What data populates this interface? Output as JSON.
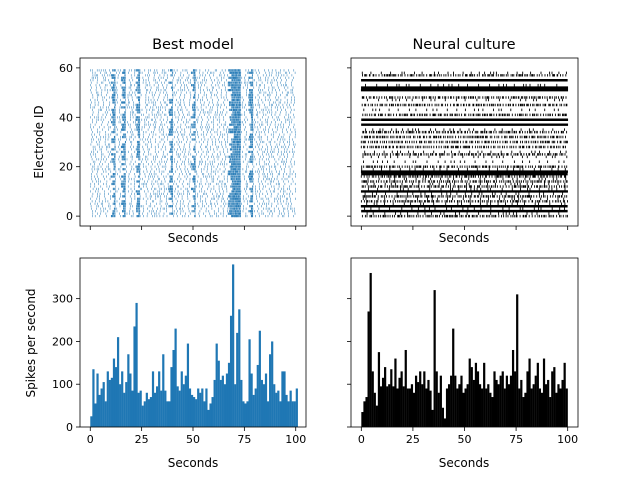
{
  "chart_data": [
    {
      "type": "raster",
      "title": "Best model",
      "xlabel": "Seconds",
      "ylabel": "Electrode ID",
      "xlim": [
        -5,
        105
      ],
      "ylim": [
        -4,
        64
      ],
      "yticks": [
        0,
        20,
        40,
        60
      ],
      "ytick_labels": [
        "0",
        "20",
        "40",
        "60"
      ],
      "xticks": [
        0,
        25,
        50,
        75,
        100
      ],
      "color": "#1f77b4",
      "electrodes": 60,
      "duration": 100,
      "bursts": [
        [
          10,
          12
        ],
        [
          15,
          17
        ],
        [
          22,
          24
        ],
        [
          38,
          40
        ],
        [
          49,
          51
        ],
        [
          67,
          73
        ],
        [
          77,
          79
        ]
      ],
      "sparse_electrodes": []
    },
    {
      "type": "raster",
      "title": "Neural culture",
      "xlabel": "Seconds",
      "ylabel": "",
      "xlim": [
        -5,
        105
      ],
      "ylim": [
        -4,
        64
      ],
      "yticks": [
        0,
        20,
        40,
        60
      ],
      "xticks": [
        0,
        25,
        50,
        75,
        100
      ],
      "color": "#000000",
      "electrodes": 60,
      "duration": 100,
      "dense_electrodes": [
        2,
        4,
        10,
        17,
        18,
        37,
        39,
        51,
        52,
        55
      ],
      "medium_electrodes": [
        0,
        6,
        8,
        12,
        14,
        16,
        20,
        25,
        28,
        30,
        32,
        34,
        41,
        45,
        48,
        57
      ],
      "sparse_electrodes": [
        1,
        3,
        5,
        7,
        9,
        11,
        13,
        15,
        19,
        22,
        24,
        26,
        35,
        43,
        47,
        53,
        58
      ]
    },
    {
      "type": "bar",
      "title": "",
      "xlabel": "Seconds",
      "ylabel": "Spikes per second",
      "xlim": [
        -5,
        105
      ],
      "ylim": [
        0,
        395
      ],
      "yticks": [
        0,
        100,
        200,
        300
      ],
      "ytick_labels": [
        "0",
        "100",
        "200",
        "300"
      ],
      "xticks": [
        0,
        25,
        50,
        75,
        100
      ],
      "xtick_labels": [
        "0",
        "25",
        "50",
        "75",
        "100"
      ],
      "color": "#1f77b4",
      "x_start": 0,
      "bin_width": 1,
      "values": [
        25,
        135,
        55,
        125,
        75,
        90,
        105,
        60,
        130,
        110,
        115,
        160,
        140,
        210,
        100,
        130,
        80,
        105,
        170,
        125,
        85,
        235,
        290,
        80,
        85,
        50,
        60,
        80,
        65,
        70,
        130,
        80,
        95,
        130,
        85,
        170,
        85,
        60,
        60,
        140,
        180,
        230,
        95,
        85,
        130,
        100,
        120,
        195,
        90,
        75,
        70,
        65,
        90,
        80,
        90,
        60,
        90,
        40,
        55,
        70,
        110,
        195,
        155,
        110,
        120,
        100,
        125,
        150,
        260,
        380,
        100,
        220,
        275,
        110,
        60,
        55,
        60,
        205,
        125,
        75,
        90,
        145,
        225,
        110,
        100,
        125,
        60,
        170,
        200,
        100,
        80,
        85,
        60,
        130,
        130,
        75,
        60,
        85,
        60,
        60,
        90
      ]
    },
    {
      "type": "bar",
      "title": "",
      "xlabel": "Seconds",
      "ylabel": "",
      "xlim": [
        -5,
        105
      ],
      "ylim": [
        0,
        395
      ],
      "yticks": [
        0,
        100,
        200,
        300
      ],
      "xticks": [
        0,
        25,
        50,
        75,
        100
      ],
      "xtick_labels": [
        "0",
        "25",
        "50",
        "75",
        "100"
      ],
      "color": "#000000",
      "x_start": 0,
      "bin_width": 1,
      "values": [
        35,
        60,
        70,
        270,
        360,
        130,
        80,
        50,
        175,
        95,
        115,
        140,
        95,
        100,
        135,
        95,
        160,
        90,
        115,
        130,
        95,
        180,
        90,
        90,
        100,
        80,
        120,
        105,
        130,
        100,
        130,
        90,
        110,
        85,
        40,
        320,
        130,
        80,
        120,
        45,
        20,
        90,
        100,
        120,
        230,
        120,
        90,
        100,
        120,
        80,
        90,
        100,
        160,
        140,
        110,
        150,
        130,
        100,
        90,
        150,
        90,
        100,
        80,
        70,
        130,
        110,
        100,
        120,
        130,
        90,
        120,
        100,
        120,
        180,
        130,
        310,
        90,
        110,
        70,
        80,
        130,
        160,
        90,
        100,
        120,
        150,
        90,
        80,
        160,
        100,
        110,
        70,
        130,
        140,
        80,
        100,
        90,
        110,
        150,
        90
      ]
    }
  ]
}
